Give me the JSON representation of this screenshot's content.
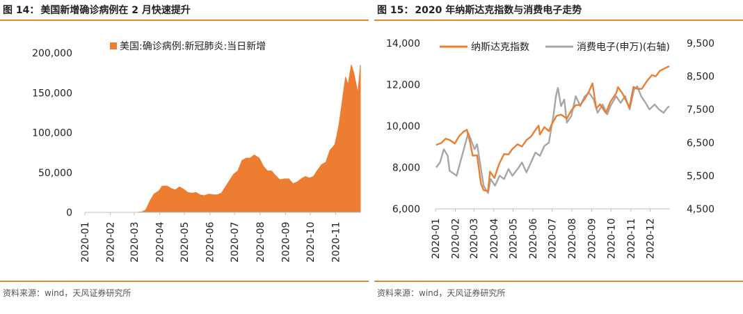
{
  "figures": [
    {
      "title_num": "图 14：",
      "title_text": "美国新增确诊病例在 2 月快速提升",
      "source": "资料来源：wind，天风证券研究所"
    },
    {
      "title_num": "图 15：",
      "title_text": "2020 年纳斯达克指数与消费电子走势",
      "source": "资料来源：wind，天风证券研究所"
    }
  ],
  "chart_data": [
    {
      "type": "area",
      "title": "美国新增确诊病例在 2 月快速提升",
      "x_ticks": [
        "2020-01",
        "2020-02",
        "2020-03",
        "2020-04",
        "2020-05",
        "2020-06",
        "2020-07",
        "2020-08",
        "2020-09",
        "2020-10",
        "2020-11"
      ],
      "ylim": [
        0,
        200000
      ],
      "y_ticks": [
        "0",
        "50,000",
        "100,000",
        "150,000",
        "200,000"
      ],
      "legend_position": "top",
      "color": "#ed7d31",
      "series": [
        {
          "name": "美国:确诊病例:新冠肺炎:当日新增",
          "points": [
            [
              "2020-01-22",
              0
            ],
            [
              "2020-02-15",
              0
            ],
            [
              "2020-03-01",
              20
            ],
            [
              "2020-03-05",
              60
            ],
            [
              "2020-03-10",
              500
            ],
            [
              "2020-03-15",
              3000
            ],
            [
              "2020-03-20",
              14000
            ],
            [
              "2020-03-25",
              23000
            ],
            [
              "2020-03-31",
              27000
            ],
            [
              "2020-04-04",
              33000
            ],
            [
              "2020-04-10",
              33000
            ],
            [
              "2020-04-15",
              30000
            ],
            [
              "2020-04-20",
              28000
            ],
            [
              "2020-04-25",
              32000
            ],
            [
              "2020-04-30",
              29000
            ],
            [
              "2020-05-05",
              25000
            ],
            [
              "2020-05-10",
              24000
            ],
            [
              "2020-05-15",
              25000
            ],
            [
              "2020-05-20",
              22000
            ],
            [
              "2020-05-25",
              21000
            ],
            [
              "2020-05-31",
              23000
            ],
            [
              "2020-06-05",
              22000
            ],
            [
              "2020-06-10",
              22000
            ],
            [
              "2020-06-15",
              24000
            ],
            [
              "2020-06-20",
              32000
            ],
            [
              "2020-06-25",
              40000
            ],
            [
              "2020-06-30",
              48000
            ],
            [
              "2020-07-05",
              52000
            ],
            [
              "2020-07-10",
              65000
            ],
            [
              "2020-07-15",
              68000
            ],
            [
              "2020-07-20",
              68000
            ],
            [
              "2020-07-25",
              72000
            ],
            [
              "2020-07-31",
              68000
            ],
            [
              "2020-08-05",
              58000
            ],
            [
              "2020-08-10",
              52000
            ],
            [
              "2020-08-15",
              52000
            ],
            [
              "2020-08-20",
              46000
            ],
            [
              "2020-08-25",
              41000
            ],
            [
              "2020-08-31",
              42000
            ],
            [
              "2020-09-05",
              42000
            ],
            [
              "2020-09-10",
              36000
            ],
            [
              "2020-09-15",
              38000
            ],
            [
              "2020-09-20",
              42000
            ],
            [
              "2020-09-25",
              45000
            ],
            [
              "2020-09-30",
              43000
            ],
            [
              "2020-10-05",
              45000
            ],
            [
              "2020-10-10",
              53000
            ],
            [
              "2020-10-15",
              60000
            ],
            [
              "2020-10-20",
              63000
            ],
            [
              "2020-10-25",
              78000
            ],
            [
              "2020-10-31",
              85000
            ],
            [
              "2020-11-05",
              110000
            ],
            [
              "2020-11-09",
              140000
            ],
            [
              "2020-11-13",
              170000
            ],
            [
              "2020-11-16",
              160000
            ],
            [
              "2020-11-20",
              185000
            ],
            [
              "2020-11-23",
              175000
            ],
            [
              "2020-11-26",
              160000
            ],
            [
              "2020-11-28",
              150000
            ],
            [
              "2020-12-01",
              185000
            ]
          ]
        }
      ]
    },
    {
      "type": "line",
      "title": "2020 年纳斯达克指数与消费电子走势",
      "x_ticks": [
        "2020-01",
        "2020-02",
        "2020-03",
        "2020-04",
        "2020-05",
        "2020-06",
        "2020-07",
        "2020-08",
        "2020-09",
        "2020-10",
        "2020-11",
        "2020-12"
      ],
      "ylim": [
        6000,
        14000
      ],
      "y_ticks": [
        "6,000",
        "8,000",
        "10,000",
        "12,000",
        "14,000"
      ],
      "y2lim": [
        4500,
        9500
      ],
      "y2_ticks": [
        "4,500",
        "5,500",
        "6,500",
        "7,500",
        "8,500",
        "9,500"
      ],
      "legend_position": "top",
      "series": [
        {
          "name": "纳斯达克指数",
          "axis": "left",
          "color": "#ed7d31",
          "points": [
            [
              "2020-01-02",
              9090
            ],
            [
              "2020-01-10",
              9180
            ],
            [
              "2020-01-17",
              9390
            ],
            [
              "2020-01-24",
              9310
            ],
            [
              "2020-01-31",
              9150
            ],
            [
              "2020-02-07",
              9520
            ],
            [
              "2020-02-14",
              9730
            ],
            [
              "2020-02-19",
              9820
            ],
            [
              "2020-02-24",
              9220
            ],
            [
              "2020-02-28",
              8570
            ],
            [
              "2020-03-06",
              8580
            ],
            [
              "2020-03-12",
              7200
            ],
            [
              "2020-03-16",
              6900
            ],
            [
              "2020-03-23",
              6860
            ],
            [
              "2020-03-26",
              7800
            ],
            [
              "2020-04-02",
              7490
            ],
            [
              "2020-04-09",
              8150
            ],
            [
              "2020-04-17",
              8650
            ],
            [
              "2020-04-24",
              8630
            ],
            [
              "2020-04-30",
              8890
            ],
            [
              "2020-05-08",
              9120
            ],
            [
              "2020-05-15",
              9010
            ],
            [
              "2020-05-22",
              9320
            ],
            [
              "2020-05-29",
              9490
            ],
            [
              "2020-06-05",
              9810
            ],
            [
              "2020-06-10",
              10020
            ],
            [
              "2020-06-12",
              9590
            ],
            [
              "2020-06-19",
              9950
            ],
            [
              "2020-06-26",
              9750
            ],
            [
              "2020-06-30",
              10060
            ],
            [
              "2020-07-08",
              10490
            ],
            [
              "2020-07-15",
              10550
            ],
            [
              "2020-07-24",
              10360
            ],
            [
              "2020-07-31",
              10750
            ],
            [
              "2020-08-07",
              11010
            ],
            [
              "2020-08-14",
              11020
            ],
            [
              "2020-08-21",
              11310
            ],
            [
              "2020-08-28",
              11700
            ],
            [
              "2020-09-02",
              12060
            ],
            [
              "2020-09-08",
              10850
            ],
            [
              "2020-09-14",
              11050
            ],
            [
              "2020-09-23",
              10630
            ],
            [
              "2020-09-30",
              11170
            ],
            [
              "2020-10-09",
              11580
            ],
            [
              "2020-10-12",
              11880
            ],
            [
              "2020-10-20",
              11520
            ],
            [
              "2020-10-28",
              11000
            ],
            [
              "2020-10-30",
              10910
            ],
            [
              "2020-11-05",
              11890
            ],
            [
              "2020-11-11",
              11790
            ],
            [
              "2020-11-18",
              11800
            ],
            [
              "2020-11-27",
              12210
            ],
            [
              "2020-12-04",
              12460
            ],
            [
              "2020-12-10",
              12400
            ],
            [
              "2020-12-16",
              12660
            ],
            [
              "2020-12-23",
              12770
            ],
            [
              "2020-12-31",
              12890
            ]
          ]
        },
        {
          "name": "消费电子(申万)(右轴)",
          "axis": "right",
          "color": "#a6a6a6",
          "points": [
            [
              "2020-01-02",
              5750
            ],
            [
              "2020-01-08",
              5900
            ],
            [
              "2020-01-14",
              6300
            ],
            [
              "2020-01-20",
              6100
            ],
            [
              "2020-01-23",
              5650
            ],
            [
              "2020-02-03",
              5500
            ],
            [
              "2020-02-10",
              6000
            ],
            [
              "2020-02-17",
              6500
            ],
            [
              "2020-02-21",
              6800
            ],
            [
              "2020-02-25",
              6600
            ],
            [
              "2020-03-02",
              6300
            ],
            [
              "2020-03-06",
              6450
            ],
            [
              "2020-03-12",
              5700
            ],
            [
              "2020-03-16",
              5200
            ],
            [
              "2020-03-19",
              5100
            ],
            [
              "2020-03-23",
              4980
            ],
            [
              "2020-03-27",
              5400
            ],
            [
              "2020-04-03",
              5200
            ],
            [
              "2020-04-10",
              5500
            ],
            [
              "2020-04-17",
              5400
            ],
            [
              "2020-04-24",
              5700
            ],
            [
              "2020-04-30",
              5500
            ],
            [
              "2020-05-08",
              5700
            ],
            [
              "2020-05-15",
              5900
            ],
            [
              "2020-05-22",
              5600
            ],
            [
              "2020-05-29",
              5900
            ],
            [
              "2020-06-05",
              6200
            ],
            [
              "2020-06-12",
              6100
            ],
            [
              "2020-06-19",
              6400
            ],
            [
              "2020-06-26",
              6500
            ],
            [
              "2020-07-03",
              7300
            ],
            [
              "2020-07-07",
              7900
            ],
            [
              "2020-07-10",
              8150
            ],
            [
              "2020-07-15",
              7600
            ],
            [
              "2020-07-20",
              7800
            ],
            [
              "2020-07-24",
              7100
            ],
            [
              "2020-07-31",
              7300
            ],
            [
              "2020-08-07",
              7900
            ],
            [
              "2020-08-14",
              7600
            ],
            [
              "2020-08-21",
              7900
            ],
            [
              "2020-08-28",
              8000
            ],
            [
              "2020-09-04",
              7800
            ],
            [
              "2020-09-10",
              7400
            ],
            [
              "2020-09-18",
              7650
            ],
            [
              "2020-09-25",
              7350
            ],
            [
              "2020-09-30",
              7600
            ],
            [
              "2020-10-09",
              7900
            ],
            [
              "2020-10-16",
              7700
            ],
            [
              "2020-10-23",
              7900
            ],
            [
              "2020-10-30",
              7500
            ],
            [
              "2020-11-06",
              8100
            ],
            [
              "2020-11-11",
              8200
            ],
            [
              "2020-11-17",
              7900
            ],
            [
              "2020-11-24",
              7700
            ],
            [
              "2020-11-30",
              7500
            ],
            [
              "2020-12-08",
              7650
            ],
            [
              "2020-12-15",
              7500
            ],
            [
              "2020-12-22",
              7400
            ],
            [
              "2020-12-28",
              7550
            ],
            [
              "2020-12-31",
              7600
            ]
          ]
        }
      ]
    }
  ]
}
